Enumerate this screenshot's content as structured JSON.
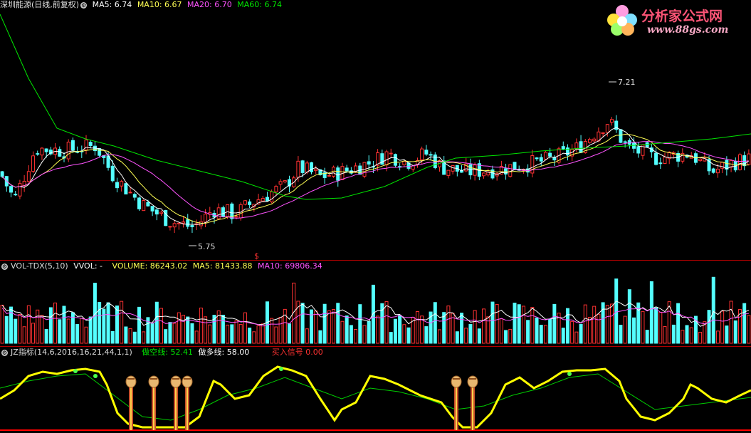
{
  "header": {
    "stock_title": "深圳能源(日线,前复权)",
    "ma5": "MA5: 6.74",
    "ma10": "MA10: 6.67",
    "ma20": "MA20: 6.70",
    "ma60": "MA60: 6.74"
  },
  "price_panel": {
    "high_label": "7.21",
    "low_label": "5.75",
    "signal_marker": "$"
  },
  "volume_panel": {
    "title": "VOL-TDX(5,10)",
    "vvol": "VVOL: -",
    "volume": "VOLUME: 86243.02",
    "ma5": "MA5: 81433.88",
    "ma10": "MA10: 69806.34"
  },
  "indicator_panel": {
    "title": "JZ指标(14,6,2016,16,21,44,1,1)",
    "short_line": "做空线: 52.41",
    "long_line": "做多线: 58.00",
    "buy_signal": "买入信号  0.00"
  },
  "watermark": {
    "name": "分析家公式网",
    "url": "www.88gs.com"
  },
  "colors": {
    "up": "#ff3232",
    "down": "#54ffff",
    "ma5": "#ffffff",
    "ma10": "#ffff54",
    "ma20": "#ff54ff",
    "ma60": "#00e600",
    "indicator_main": "#ffff00",
    "indicator_sub": "#00cc00"
  },
  "chart_data": [
    {
      "type": "candlestick",
      "title": "深圳能源(日线,前复权)",
      "ylim": [
        5.6,
        7.35
      ],
      "annotations": [
        {
          "label": "7.21",
          "value": 7.21
        },
        {
          "label": "5.75",
          "value": 5.75
        }
      ],
      "series": [
        {
          "name": "MA5"
        },
        {
          "name": "MA10"
        },
        {
          "name": "MA20"
        },
        {
          "name": "MA60"
        }
      ]
    },
    {
      "type": "bar",
      "title": "VOL-TDX(5,10)",
      "series": [
        {
          "name": "VOLUME"
        },
        {
          "name": "MA5"
        },
        {
          "name": "MA10"
        }
      ]
    },
    {
      "type": "line",
      "title": "JZ指标(14,6,2016,16,21,44,1,1)",
      "series": [
        {
          "name": "做空线"
        },
        {
          "name": "做多线"
        },
        {
          "name": "买入信号"
        }
      ]
    }
  ]
}
